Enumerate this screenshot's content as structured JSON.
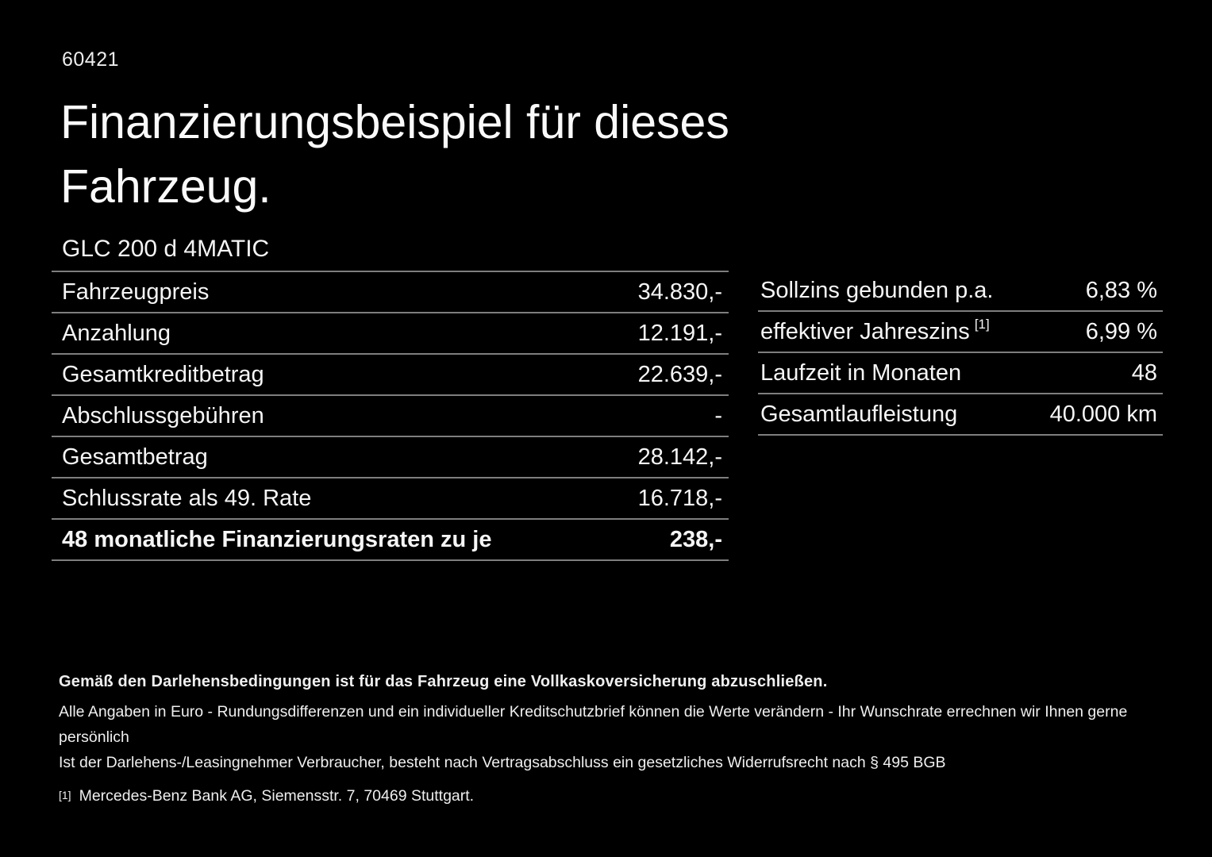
{
  "page": {
    "background_color": "#000000",
    "text_color": "#f5f5f5",
    "divider_color": "#7e7e7e"
  },
  "header": {
    "reference_number": "60421",
    "title_line1": "Finanzierungsbeispiel für dieses",
    "title_line2": "Fahrzeug.",
    "vehicle_model": "GLC 200 d 4MATIC"
  },
  "financing_table": {
    "rows": [
      {
        "label": "Fahrzeugpreis",
        "value": "34.830,-"
      },
      {
        "label": "Anzahlung",
        "value": "12.191,-"
      },
      {
        "label": "Gesamtkreditbetrag",
        "value": "22.639,-"
      },
      {
        "label": "Abschlussgebühren",
        "value": "-"
      },
      {
        "label": "Gesamtbetrag",
        "value": "28.142,-"
      },
      {
        "label": "Schlussrate als 49. Rate",
        "value": "16.718,-"
      },
      {
        "label": "48 monatliche Finanzierungsraten zu je",
        "value": "238,-"
      }
    ]
  },
  "conditions_table": {
    "rows": [
      {
        "label": "Sollzins gebunden p.a.",
        "value": "6,83 %"
      },
      {
        "label": "effektiver Jahreszins",
        "footnote_marker": "[1]",
        "value": "6,99 %"
      },
      {
        "label": "Laufzeit in Monaten",
        "value": "48"
      },
      {
        "label": "Gesamtlaufleistung",
        "value": "40.000 km"
      }
    ]
  },
  "footnotes": {
    "insurance_note": "Gemäß den Darlehensbedingungen ist für das Fahrzeug eine Vollkaskoversicherung abzuschließen.",
    "disclaimer_line1": "Alle Angaben in Euro - Rundungsdifferenzen und ein individueller Kreditschutzbrief können die Werte verändern - Ihr Wunschrate errechnen wir Ihnen gerne persönlich",
    "disclaimer_line2": "Ist der Darlehens-/Leasingnehmer Verbraucher, besteht nach Vertragsabschluss ein gesetzliches Widerrufsrecht nach § 495 BGB",
    "footnote_marker": "[1]",
    "footnote_text": "Mercedes-Benz Bank AG, Siemensstr. 7, 70469 Stuttgart."
  }
}
